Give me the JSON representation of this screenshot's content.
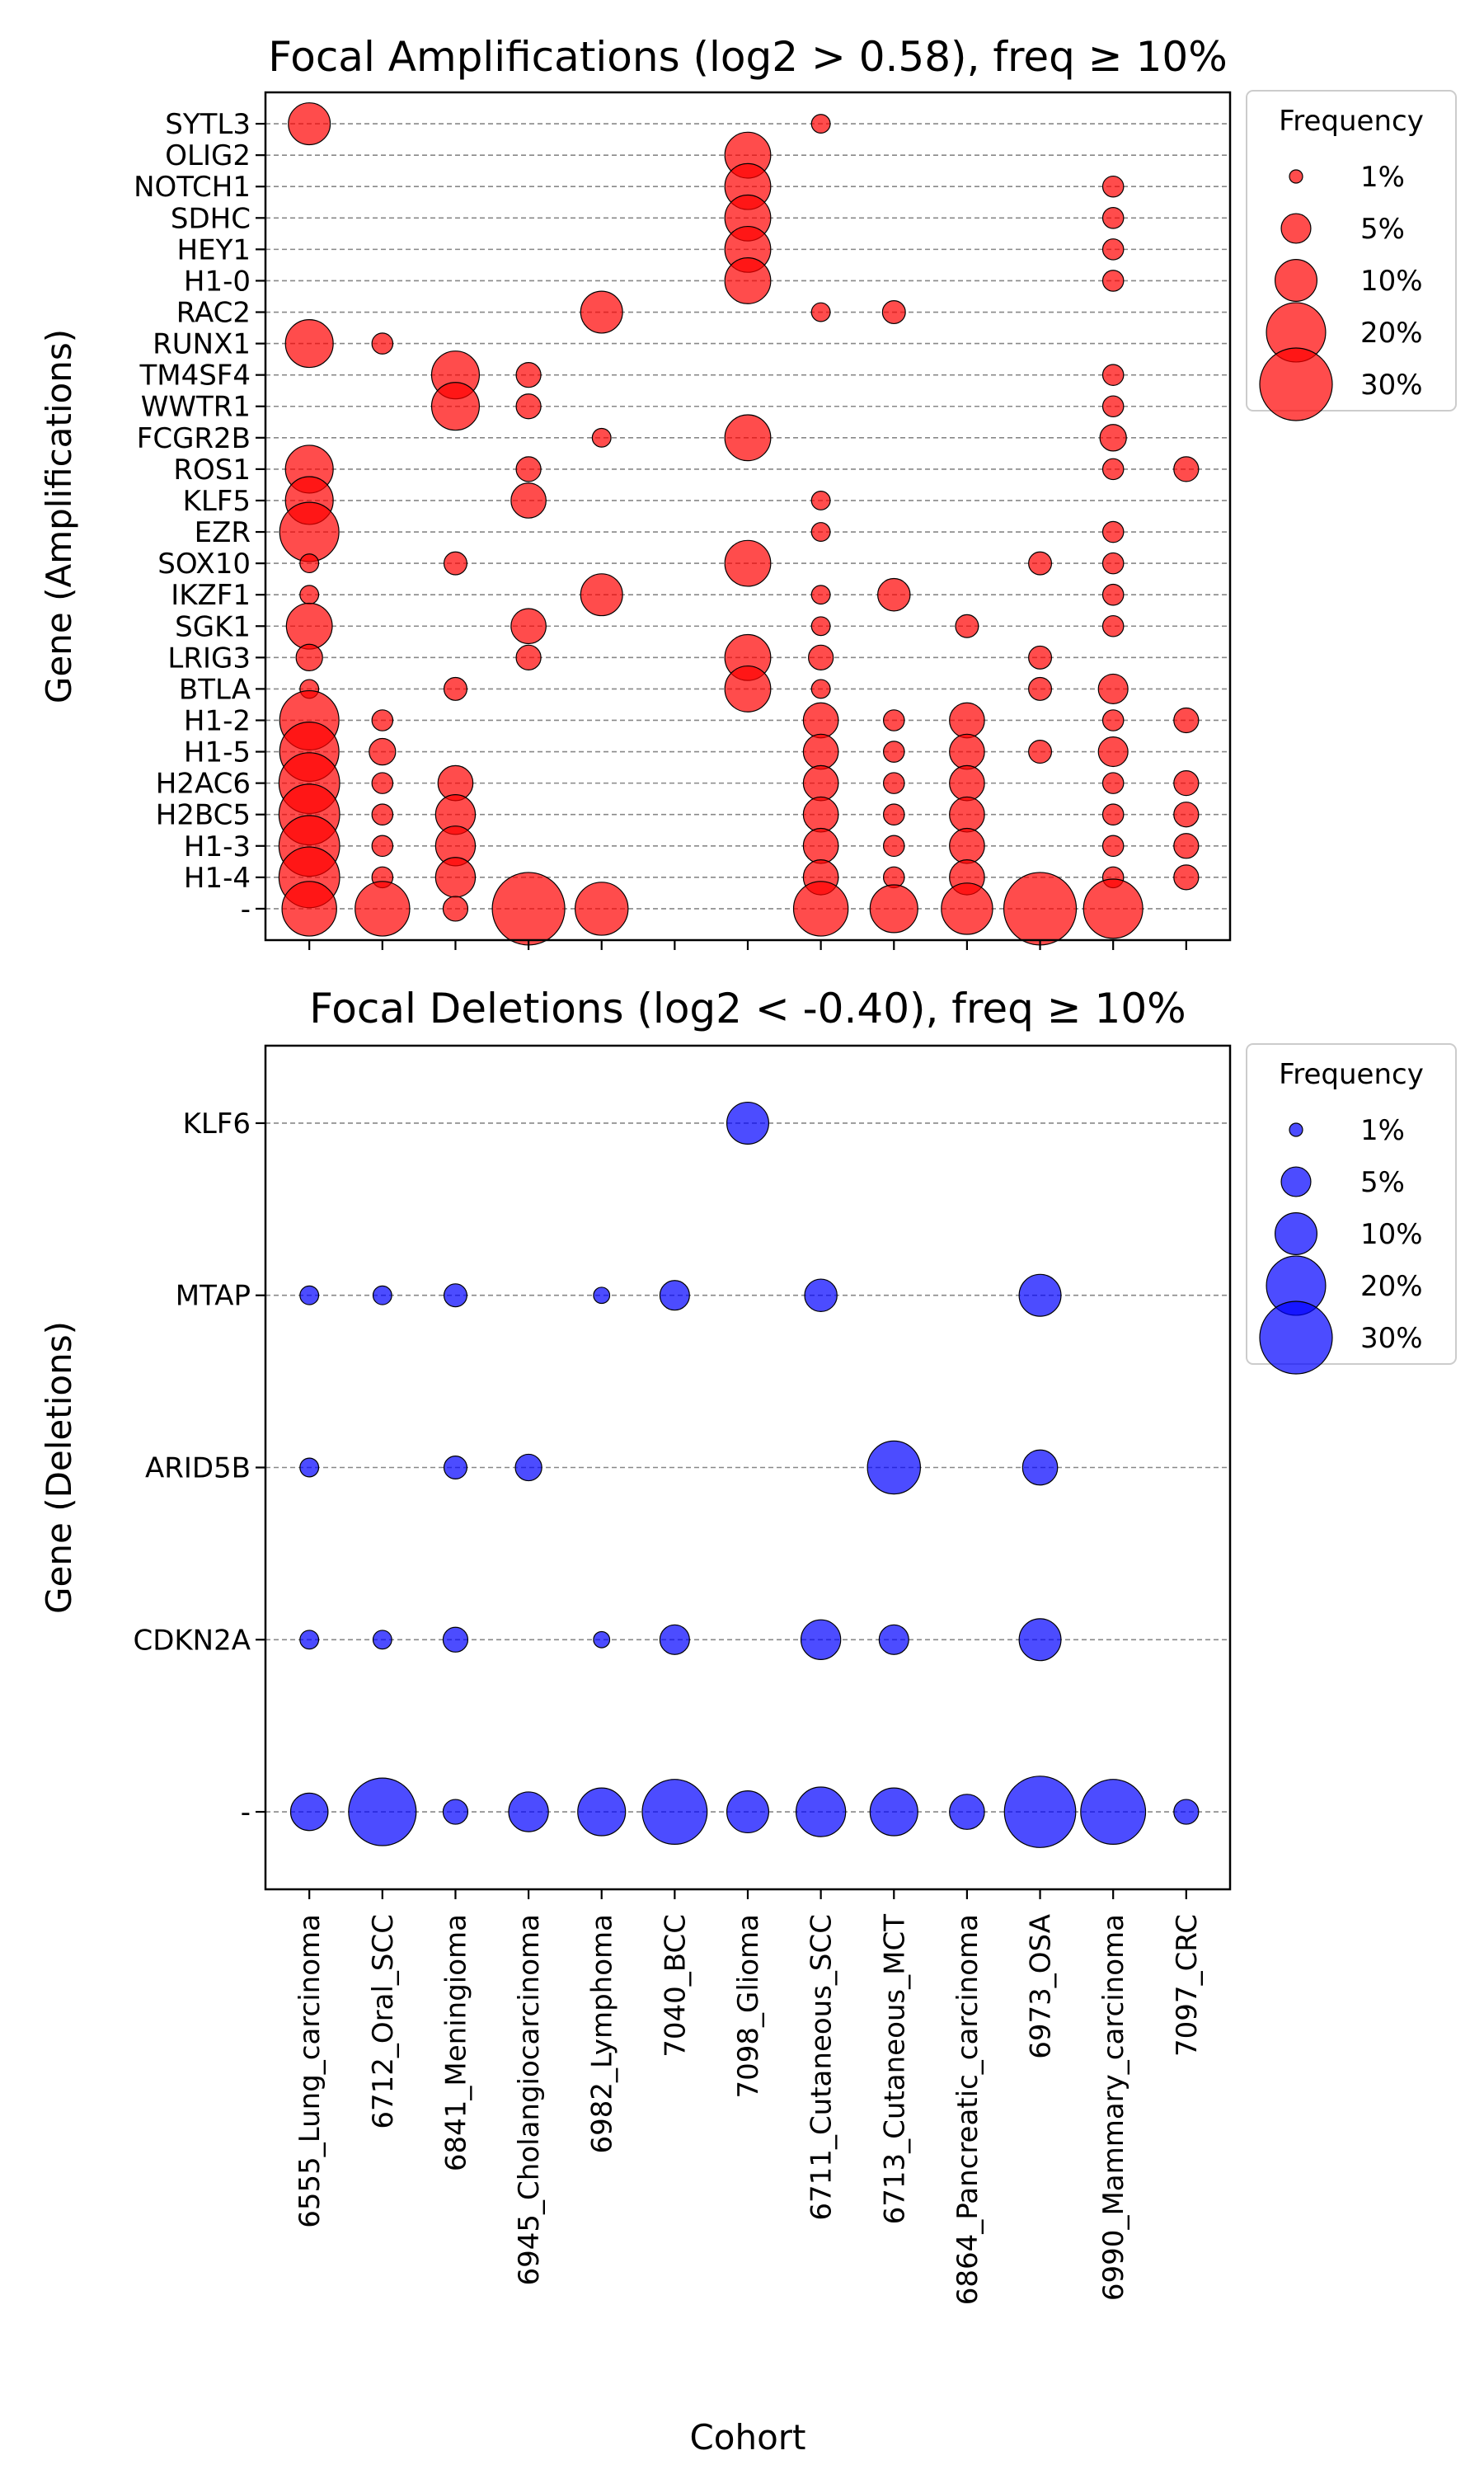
{
  "figure": {
    "xlabel": "Cohort",
    "frequency_scale": {
      "min_pct": 1,
      "max_pct": 30
    }
  },
  "chart_data": [
    {
      "type": "scatter",
      "title": "Focal Amplifications (log2 > 0.58), freq ≥ 10%",
      "ylabel": "Gene (Amplifications)",
      "color": "#ff0000",
      "legend": {
        "title": "Frequency",
        "placement": "outside-right",
        "entries": [
          "1%",
          "5%",
          "10%",
          "20%",
          "30%"
        ],
        "values": [
          1,
          5,
          10,
          20,
          30
        ]
      },
      "categories": [
        "6555_Lung_carcinoma",
        "6712_Oral_SCC",
        "6841_Meningioma",
        "6945_Cholangiocarcinoma",
        "6982_Lymphoma",
        "7040_BCC",
        "7098_Glioma",
        "6711_Cutaneous_SCC",
        "6713_Cutaneous_MCT",
        "6864_Pancreatic_carcinoma",
        "6973_OSA",
        "6990_Mammary_carcinoma",
        "7097_CRC"
      ],
      "genes": [
        "SYTL3",
        "OLIG2",
        "NOTCH1",
        "SDHC",
        "HEY1",
        "H1-0",
        "RAC2",
        "RUNX1",
        "TM4SF4",
        "WWTR1",
        "FCGR2B",
        "ROS1",
        "KLF5",
        "EZR",
        "SOX10",
        "IKZF1",
        "SGK1",
        "LRIG3",
        "BTLA",
        "H1-2",
        "H1-5",
        "H2AC6",
        "H2BC5",
        "H1-3",
        "H1-4",
        "-"
      ],
      "points": [
        {
          "cohort": "6555_Lung_carcinoma",
          "gene": "SYTL3",
          "freq": 10
        },
        {
          "cohort": "6711_Cutaneous_SCC",
          "gene": "SYTL3",
          "freq": 2
        },
        {
          "cohort": "7098_Glioma",
          "gene": "OLIG2",
          "freq": 12
        },
        {
          "cohort": "7098_Glioma",
          "gene": "NOTCH1",
          "freq": 12
        },
        {
          "cohort": "6990_Mammary_carcinoma",
          "gene": "NOTCH1",
          "freq": 2.5
        },
        {
          "cohort": "7098_Glioma",
          "gene": "SDHC",
          "freq": 12
        },
        {
          "cohort": "6990_Mammary_carcinoma",
          "gene": "SDHC",
          "freq": 2.5
        },
        {
          "cohort": "7098_Glioma",
          "gene": "HEY1",
          "freq": 12
        },
        {
          "cohort": "6990_Mammary_carcinoma",
          "gene": "HEY1",
          "freq": 2.5
        },
        {
          "cohort": "7098_Glioma",
          "gene": "H1-0",
          "freq": 12
        },
        {
          "cohort": "6990_Mammary_carcinoma",
          "gene": "H1-0",
          "freq": 2.5
        },
        {
          "cohort": "6982_Lymphoma",
          "gene": "RAC2",
          "freq": 10
        },
        {
          "cohort": "6711_Cutaneous_SCC",
          "gene": "RAC2",
          "freq": 2
        },
        {
          "cohort": "6713_Cutaneous_MCT",
          "gene": "RAC2",
          "freq": 3
        },
        {
          "cohort": "6555_Lung_carcinoma",
          "gene": "RUNX1",
          "freq": 13
        },
        {
          "cohort": "6712_Oral_SCC",
          "gene": "RUNX1",
          "freq": 2.5
        },
        {
          "cohort": "6841_Meningioma",
          "gene": "TM4SF4",
          "freq": 13
        },
        {
          "cohort": "6945_Cholangiocarcinoma",
          "gene": "TM4SF4",
          "freq": 3.5
        },
        {
          "cohort": "6990_Mammary_carcinoma",
          "gene": "TM4SF4",
          "freq": 2.5
        },
        {
          "cohort": "6841_Meningioma",
          "gene": "WWTR1",
          "freq": 13
        },
        {
          "cohort": "6945_Cholangiocarcinoma",
          "gene": "WWTR1",
          "freq": 3.5
        },
        {
          "cohort": "6990_Mammary_carcinoma",
          "gene": "WWTR1",
          "freq": 2.5
        },
        {
          "cohort": "6982_Lymphoma",
          "gene": "FCGR2B",
          "freq": 2
        },
        {
          "cohort": "7098_Glioma",
          "gene": "FCGR2B",
          "freq": 12
        },
        {
          "cohort": "6990_Mammary_carcinoma",
          "gene": "FCGR2B",
          "freq": 4
        },
        {
          "cohort": "6555_Lung_carcinoma",
          "gene": "ROS1",
          "freq": 13
        },
        {
          "cohort": "6945_Cholangiocarcinoma",
          "gene": "ROS1",
          "freq": 3.5
        },
        {
          "cohort": "6990_Mammary_carcinoma",
          "gene": "ROS1",
          "freq": 2.5
        },
        {
          "cohort": "7097_CRC",
          "gene": "ROS1",
          "freq": 3.5
        },
        {
          "cohort": "6555_Lung_carcinoma",
          "gene": "KLF5",
          "freq": 13
        },
        {
          "cohort": "6945_Cholangiocarcinoma",
          "gene": "KLF5",
          "freq": 7
        },
        {
          "cohort": "6711_Cutaneous_SCC",
          "gene": "KLF5",
          "freq": 2
        },
        {
          "cohort": "6555_Lung_carcinoma",
          "gene": "EZR",
          "freq": 20
        },
        {
          "cohort": "6711_Cutaneous_SCC",
          "gene": "EZR",
          "freq": 2
        },
        {
          "cohort": "6990_Mammary_carcinoma",
          "gene": "EZR",
          "freq": 2.5
        },
        {
          "cohort": "6555_Lung_carcinoma",
          "gene": "SOX10",
          "freq": 2
        },
        {
          "cohort": "6841_Meningioma",
          "gene": "SOX10",
          "freq": 3
        },
        {
          "cohort": "7098_Glioma",
          "gene": "SOX10",
          "freq": 12
        },
        {
          "cohort": "6973_OSA",
          "gene": "SOX10",
          "freq": 3
        },
        {
          "cohort": "6990_Mammary_carcinoma",
          "gene": "SOX10",
          "freq": 2.5
        },
        {
          "cohort": "6555_Lung_carcinoma",
          "gene": "IKZF1",
          "freq": 2
        },
        {
          "cohort": "6982_Lymphoma",
          "gene": "IKZF1",
          "freq": 10
        },
        {
          "cohort": "6711_Cutaneous_SCC",
          "gene": "IKZF1",
          "freq": 2
        },
        {
          "cohort": "6713_Cutaneous_MCT",
          "gene": "IKZF1",
          "freq": 6
        },
        {
          "cohort": "6990_Mammary_carcinoma",
          "gene": "IKZF1",
          "freq": 2.5
        },
        {
          "cohort": "6555_Lung_carcinoma",
          "gene": "SGK1",
          "freq": 12
        },
        {
          "cohort": "6945_Cholangiocarcinoma",
          "gene": "SGK1",
          "freq": 7
        },
        {
          "cohort": "6711_Cutaneous_SCC",
          "gene": "SGK1",
          "freq": 2
        },
        {
          "cohort": "6864_Pancreatic_carcinoma",
          "gene": "SGK1",
          "freq": 3
        },
        {
          "cohort": "6990_Mammary_carcinoma",
          "gene": "SGK1",
          "freq": 2.5
        },
        {
          "cohort": "6555_Lung_carcinoma",
          "gene": "LRIG3",
          "freq": 4
        },
        {
          "cohort": "6945_Cholangiocarcinoma",
          "gene": "LRIG3",
          "freq": 3.5
        },
        {
          "cohort": "7098_Glioma",
          "gene": "LRIG3",
          "freq": 12
        },
        {
          "cohort": "6711_Cutaneous_SCC",
          "gene": "LRIG3",
          "freq": 3.5
        },
        {
          "cohort": "6973_OSA",
          "gene": "LRIG3",
          "freq": 3
        },
        {
          "cohort": "6555_Lung_carcinoma",
          "gene": "BTLA",
          "freq": 2
        },
        {
          "cohort": "6841_Meningioma",
          "gene": "BTLA",
          "freq": 3
        },
        {
          "cohort": "7098_Glioma",
          "gene": "BTLA",
          "freq": 12
        },
        {
          "cohort": "6711_Cutaneous_SCC",
          "gene": "BTLA",
          "freq": 2
        },
        {
          "cohort": "6973_OSA",
          "gene": "BTLA",
          "freq": 3
        },
        {
          "cohort": "6990_Mammary_carcinoma",
          "gene": "BTLA",
          "freq": 5
        },
        {
          "cohort": "6555_Lung_carcinoma",
          "gene": "H1-2",
          "freq": 20
        },
        {
          "cohort": "6712_Oral_SCC",
          "gene": "H1-2",
          "freq": 2.5
        },
        {
          "cohort": "6711_Cutaneous_SCC",
          "gene": "H1-2",
          "freq": 7
        },
        {
          "cohort": "6713_Cutaneous_MCT",
          "gene": "H1-2",
          "freq": 2.5
        },
        {
          "cohort": "6864_Pancreatic_carcinoma",
          "gene": "H1-2",
          "freq": 7
        },
        {
          "cohort": "6990_Mammary_carcinoma",
          "gene": "H1-2",
          "freq": 2.5
        },
        {
          "cohort": "7097_CRC",
          "gene": "H1-2",
          "freq": 3.5
        },
        {
          "cohort": "6555_Lung_carcinoma",
          "gene": "H1-5",
          "freq": 20
        },
        {
          "cohort": "6712_Oral_SCC",
          "gene": "H1-5",
          "freq": 4
        },
        {
          "cohort": "6711_Cutaneous_SCC",
          "gene": "H1-5",
          "freq": 7
        },
        {
          "cohort": "6713_Cutaneous_MCT",
          "gene": "H1-5",
          "freq": 2.5
        },
        {
          "cohort": "6864_Pancreatic_carcinoma",
          "gene": "H1-5",
          "freq": 7
        },
        {
          "cohort": "6973_OSA",
          "gene": "H1-5",
          "freq": 3
        },
        {
          "cohort": "6990_Mammary_carcinoma",
          "gene": "H1-5",
          "freq": 5
        },
        {
          "cohort": "6555_Lung_carcinoma",
          "gene": "H2AC6",
          "freq": 21
        },
        {
          "cohort": "6712_Oral_SCC",
          "gene": "H2AC6",
          "freq": 2.5
        },
        {
          "cohort": "6841_Meningioma",
          "gene": "H2AC6",
          "freq": 7
        },
        {
          "cohort": "6711_Cutaneous_SCC",
          "gene": "H2AC6",
          "freq": 7
        },
        {
          "cohort": "6713_Cutaneous_MCT",
          "gene": "H2AC6",
          "freq": 2.5
        },
        {
          "cohort": "6864_Pancreatic_carcinoma",
          "gene": "H2AC6",
          "freq": 7
        },
        {
          "cohort": "6990_Mammary_carcinoma",
          "gene": "H2AC6",
          "freq": 2.5
        },
        {
          "cohort": "7097_CRC",
          "gene": "H2AC6",
          "freq": 3.5
        },
        {
          "cohort": "6555_Lung_carcinoma",
          "gene": "H2BC5",
          "freq": 21
        },
        {
          "cohort": "6712_Oral_SCC",
          "gene": "H2BC5",
          "freq": 2.5
        },
        {
          "cohort": "6841_Meningioma",
          "gene": "H2BC5",
          "freq": 9
        },
        {
          "cohort": "6711_Cutaneous_SCC",
          "gene": "H2BC5",
          "freq": 7
        },
        {
          "cohort": "6713_Cutaneous_MCT",
          "gene": "H2BC5",
          "freq": 2.5
        },
        {
          "cohort": "6864_Pancreatic_carcinoma",
          "gene": "H2BC5",
          "freq": 7
        },
        {
          "cohort": "6990_Mammary_carcinoma",
          "gene": "H2BC5",
          "freq": 2.5
        },
        {
          "cohort": "7097_CRC",
          "gene": "H2BC5",
          "freq": 3.5
        },
        {
          "cohort": "6555_Lung_carcinoma",
          "gene": "H1-3",
          "freq": 21
        },
        {
          "cohort": "6712_Oral_SCC",
          "gene": "H1-3",
          "freq": 2.5
        },
        {
          "cohort": "6841_Meningioma",
          "gene": "H1-3",
          "freq": 9
        },
        {
          "cohort": "6711_Cutaneous_SCC",
          "gene": "H1-3",
          "freq": 7
        },
        {
          "cohort": "6713_Cutaneous_MCT",
          "gene": "H1-3",
          "freq": 2.5
        },
        {
          "cohort": "6864_Pancreatic_carcinoma",
          "gene": "H1-3",
          "freq": 7
        },
        {
          "cohort": "6990_Mammary_carcinoma",
          "gene": "H1-3",
          "freq": 2.5
        },
        {
          "cohort": "7097_CRC",
          "gene": "H1-3",
          "freq": 3.5
        },
        {
          "cohort": "6555_Lung_carcinoma",
          "gene": "H1-4",
          "freq": 21
        },
        {
          "cohort": "6712_Oral_SCC",
          "gene": "H1-4",
          "freq": 2.5
        },
        {
          "cohort": "6841_Meningioma",
          "gene": "H1-4",
          "freq": 9
        },
        {
          "cohort": "6711_Cutaneous_SCC",
          "gene": "H1-4",
          "freq": 7
        },
        {
          "cohort": "6713_Cutaneous_MCT",
          "gene": "H1-4",
          "freq": 2.5
        },
        {
          "cohort": "6864_Pancreatic_carcinoma",
          "gene": "H1-4",
          "freq": 7
        },
        {
          "cohort": "6990_Mammary_carcinoma",
          "gene": "H1-4",
          "freq": 2.5
        },
        {
          "cohort": "7097_CRC",
          "gene": "H1-4",
          "freq": 3.5
        },
        {
          "cohort": "6555_Lung_carcinoma",
          "gene": "-",
          "freq": 17
        },
        {
          "cohort": "6712_Oral_SCC",
          "gene": "-",
          "freq": 17
        },
        {
          "cohort": "6841_Meningioma",
          "gene": "-",
          "freq": 3.5
        },
        {
          "cohort": "6945_Cholangiocarcinoma",
          "gene": "-",
          "freq": 30
        },
        {
          "cohort": "6982_Lymphoma",
          "gene": "-",
          "freq": 16
        },
        {
          "cohort": "6711_Cutaneous_SCC",
          "gene": "-",
          "freq": 17
        },
        {
          "cohort": "6713_Cutaneous_MCT",
          "gene": "-",
          "freq": 13
        },
        {
          "cohort": "6864_Pancreatic_carcinoma",
          "gene": "-",
          "freq": 15
        },
        {
          "cohort": "6973_OSA",
          "gene": "-",
          "freq": 30
        },
        {
          "cohort": "6990_Mammary_carcinoma",
          "gene": "-",
          "freq": 20
        }
      ]
    },
    {
      "type": "scatter",
      "title": "Focal Deletions (log2 < -0.40), freq ≥ 10%",
      "ylabel": "Gene (Deletions)",
      "color": "#0000ff",
      "legend": {
        "title": "Frequency",
        "placement": "outside-right",
        "entries": [
          "1%",
          "5%",
          "10%",
          "20%",
          "30%"
        ],
        "values": [
          1,
          5,
          10,
          20,
          30
        ]
      },
      "categories": [
        "6555_Lung_carcinoma",
        "6712_Oral_SCC",
        "6841_Meningioma",
        "6945_Cholangiocarcinoma",
        "6982_Lymphoma",
        "7040_BCC",
        "7098_Glioma",
        "6711_Cutaneous_SCC",
        "6713_Cutaneous_MCT",
        "6864_Pancreatic_carcinoma",
        "6973_OSA",
        "6990_Mammary_carcinoma",
        "7097_CRC"
      ],
      "genes": [
        "KLF6",
        "MTAP",
        "ARID5B",
        "CDKN2A",
        "-"
      ],
      "points": [
        {
          "cohort": "7098_Glioma",
          "gene": "KLF6",
          "freq": 10
        },
        {
          "cohort": "6555_Lung_carcinoma",
          "gene": "MTAP",
          "freq": 2
        },
        {
          "cohort": "6712_Oral_SCC",
          "gene": "MTAP",
          "freq": 2
        },
        {
          "cohort": "6841_Meningioma",
          "gene": "MTAP",
          "freq": 3
        },
        {
          "cohort": "6982_Lymphoma",
          "gene": "MTAP",
          "freq": 1.5
        },
        {
          "cohort": "7040_BCC",
          "gene": "MTAP",
          "freq": 5
        },
        {
          "cohort": "6711_Cutaneous_SCC",
          "gene": "MTAP",
          "freq": 6
        },
        {
          "cohort": "6973_OSA",
          "gene": "MTAP",
          "freq": 10
        },
        {
          "cohort": "6555_Lung_carcinoma",
          "gene": "ARID5B",
          "freq": 2
        },
        {
          "cohort": "6841_Meningioma",
          "gene": "ARID5B",
          "freq": 3
        },
        {
          "cohort": "6945_Cholangiocarcinoma",
          "gene": "ARID5B",
          "freq": 4
        },
        {
          "cohort": "6713_Cutaneous_MCT",
          "gene": "ARID5B",
          "freq": 16
        },
        {
          "cohort": "6973_OSA",
          "gene": "ARID5B",
          "freq": 7
        },
        {
          "cohort": "6555_Lung_carcinoma",
          "gene": "CDKN2A",
          "freq": 2
        },
        {
          "cohort": "6712_Oral_SCC",
          "gene": "CDKN2A",
          "freq": 2
        },
        {
          "cohort": "6841_Meningioma",
          "gene": "CDKN2A",
          "freq": 3.5
        },
        {
          "cohort": "6982_Lymphoma",
          "gene": "CDKN2A",
          "freq": 1.5
        },
        {
          "cohort": "7040_BCC",
          "gene": "CDKN2A",
          "freq": 5
        },
        {
          "cohort": "6711_Cutaneous_SCC",
          "gene": "CDKN2A",
          "freq": 9
        },
        {
          "cohort": "6713_Cutaneous_MCT",
          "gene": "CDKN2A",
          "freq": 5
        },
        {
          "cohort": "6973_OSA",
          "gene": "CDKN2A",
          "freq": 10
        },
        {
          "cohort": "6555_Lung_carcinoma",
          "gene": "-",
          "freq": 8
        },
        {
          "cohort": "6712_Oral_SCC",
          "gene": "-",
          "freq": 26
        },
        {
          "cohort": "6841_Meningioma",
          "gene": "-",
          "freq": 3.5
        },
        {
          "cohort": "6945_Cholangiocarcinoma",
          "gene": "-",
          "freq": 9
        },
        {
          "cohort": "6982_Lymphoma",
          "gene": "-",
          "freq": 13
        },
        {
          "cohort": "7040_BCC",
          "gene": "-",
          "freq": 24
        },
        {
          "cohort": "7098_Glioma",
          "gene": "-",
          "freq": 10
        },
        {
          "cohort": "6711_Cutaneous_SCC",
          "gene": "-",
          "freq": 14
        },
        {
          "cohort": "6713_Cutaneous_MCT",
          "gene": "-",
          "freq": 13
        },
        {
          "cohort": "6864_Pancreatic_carcinoma",
          "gene": "-",
          "freq": 7
        },
        {
          "cohort": "6973_OSA",
          "gene": "-",
          "freq": 29
        },
        {
          "cohort": "6990_Mammary_carcinoma",
          "gene": "-",
          "freq": 24
        },
        {
          "cohort": "7097_CRC",
          "gene": "-",
          "freq": 3.5
        }
      ]
    }
  ]
}
